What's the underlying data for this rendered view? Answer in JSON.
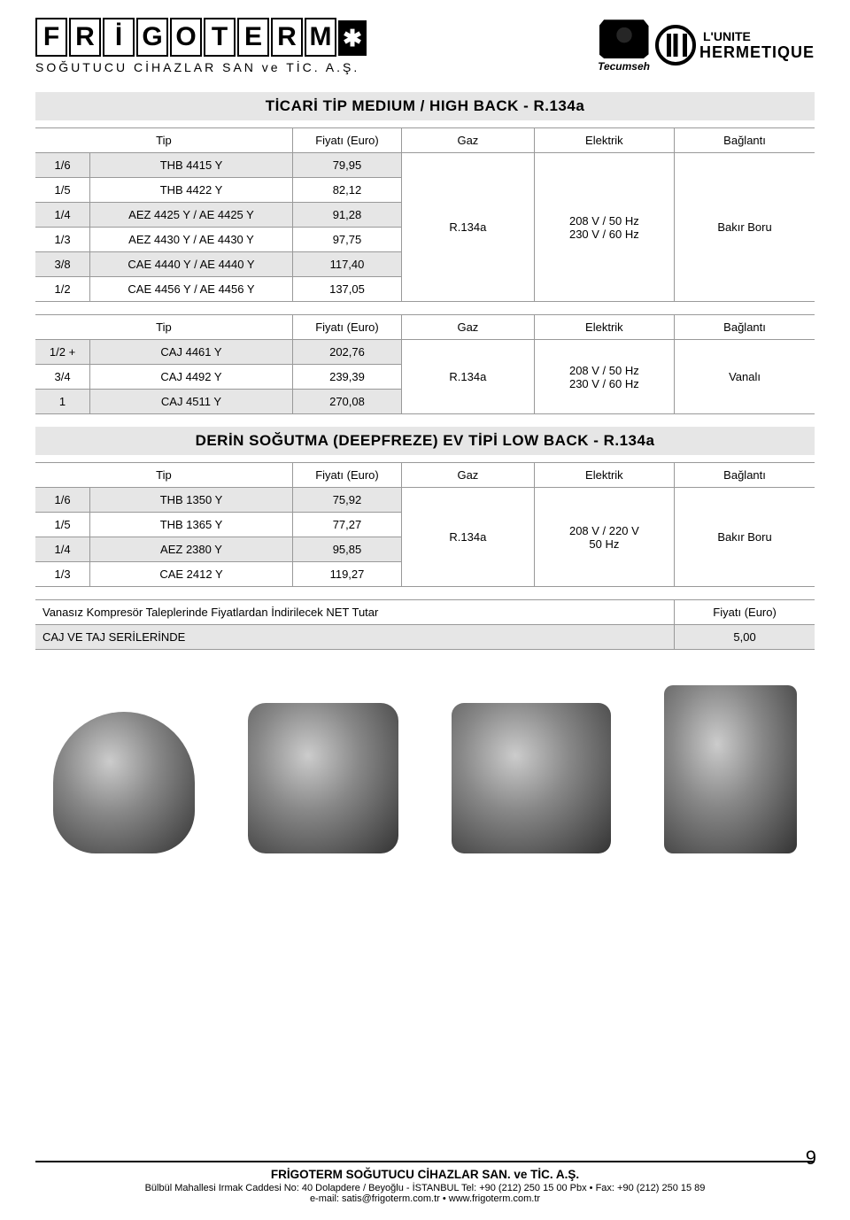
{
  "logo": {
    "letters": [
      "F",
      "R",
      "İ",
      "G",
      "O",
      "T",
      "E",
      "R",
      "M"
    ],
    "snow": "✱",
    "subtitle": "SOĞUTUCU  CİHAZLAR  SAN  ve  TİC.  A.Ş."
  },
  "brand_right": {
    "tecumseh": "Tecumseh",
    "lunite": "L'UNITE",
    "hermetique": "HERMETIQUE"
  },
  "headers": {
    "tip": "Tip",
    "fiyat": "Fiyatı (Euro)",
    "gaz": "Gaz",
    "elektrik": "Elektrik",
    "baglanti": "Bağlantı"
  },
  "section1": {
    "title": "TİCARİ TİP MEDIUM / HIGH BACK - R.134a",
    "rows": [
      {
        "hp": "1/6",
        "tip": "THB 4415 Y",
        "fiyat": "79,95"
      },
      {
        "hp": "1/5",
        "tip": "THB 4422 Y",
        "fiyat": "82,12"
      },
      {
        "hp": "1/4",
        "tip": "AEZ 4425 Y / AE 4425 Y",
        "fiyat": "91,28"
      },
      {
        "hp": "1/3",
        "tip": "AEZ 4430 Y / AE 4430 Y",
        "fiyat": "97,75"
      },
      {
        "hp": "3/8",
        "tip": "CAE 4440 Y / AE 4440 Y",
        "fiyat": "117,40"
      },
      {
        "hp": "1/2",
        "tip": "CAE 4456 Y / AE 4456 Y",
        "fiyat": "137,05"
      }
    ],
    "gaz": "R.134a",
    "elektrik1": "208 V / 50 Hz",
    "elektrik2": "230 V / 60 Hz",
    "baglanti": "Bakır Boru"
  },
  "section2": {
    "rows": [
      {
        "hp": "1/2 +",
        "tip": "CAJ 4461 Y",
        "fiyat": "202,76"
      },
      {
        "hp": "3/4",
        "tip": "CAJ 4492 Y",
        "fiyat": "239,39"
      },
      {
        "hp": "1",
        "tip": "CAJ 4511 Y",
        "fiyat": "270,08"
      }
    ],
    "gaz": "R.134a",
    "elektrik1": "208 V / 50 Hz",
    "elektrik2": "230 V / 60 Hz",
    "baglanti": "Vanalı"
  },
  "section3": {
    "title": "DERİN SOĞUTMA (DEEPFREZE) EV TİPİ LOW BACK - R.134a",
    "rows": [
      {
        "hp": "1/6",
        "tip": "THB 1350 Y",
        "fiyat": "75,92"
      },
      {
        "hp": "1/5",
        "tip": "THB 1365 Y",
        "fiyat": "77,27"
      },
      {
        "hp": "1/4",
        "tip": "AEZ 2380 Y",
        "fiyat": "95,85"
      },
      {
        "hp": "1/3",
        "tip": "CAE 2412 Y",
        "fiyat": "119,27"
      }
    ],
    "gaz": "R.134a",
    "elektrik1": "208 V / 220 V",
    "elektrik2": "50 Hz",
    "baglanti": "Bakır Boru"
  },
  "note": {
    "line1_left": "Vanasız Kompresör Taleplerinde Fiyatlardan İndirilecek NET Tutar",
    "line1_right": "Fiyatı (Euro)",
    "line2_left": "CAJ VE TAJ SERİLERİNDE",
    "line2_right": "5,00"
  },
  "footer": {
    "company": "FRİGOTERM SOĞUTUCU CİHAZLAR SAN. ve TİC. A.Ş.",
    "address": "Bülbül Mahallesi Irmak Caddesi No: 40 Dolapdere / Beyoğlu - İSTANBUL      Tel: +90 (212) 250 15 00 Pbx • Fax: +90 (212) 250 15 89",
    "email": "e-mail: satis@frigoterm.com.tr  •  www.frigoterm.com.tr",
    "page": "9"
  },
  "colors": {
    "stripe": "#e6e6e6",
    "border": "#999999",
    "text": "#000000",
    "bg": "#ffffff"
  }
}
